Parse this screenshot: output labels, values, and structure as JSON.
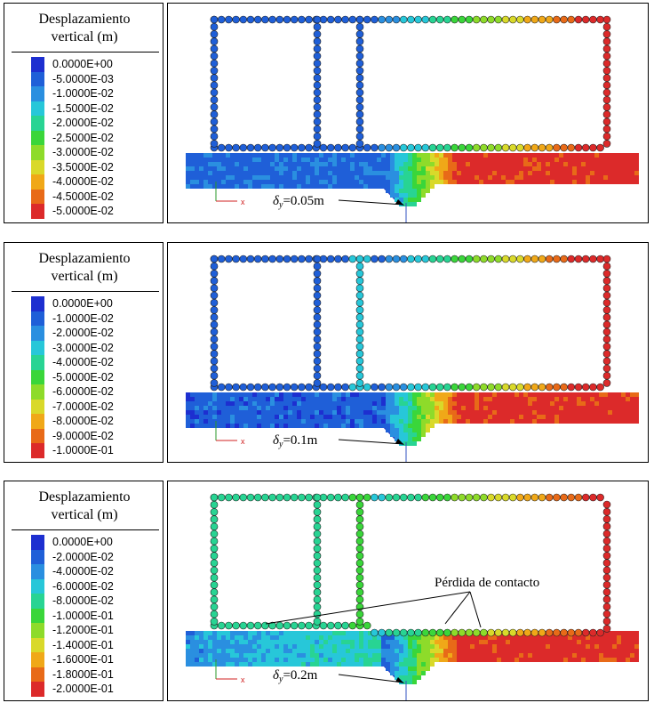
{
  "panels": [
    {
      "legend_title_line1": "Desplazamiento",
      "legend_title_line2": "vertical (m)",
      "legend_labels": [
        "0.0000E+00",
        "-5.0000E-03",
        "-1.0000E-02",
        "-1.5000E-02",
        "-2.0000E-02",
        "-2.5000E-02",
        "-3.0000E-02",
        "-3.5000E-02",
        "-4.0000E-02",
        "-4.5000E-02",
        "-5.0000E-02"
      ],
      "annotation_delta": "δ",
      "annotation_sub": "y",
      "annotation_value": "=0.05m",
      "axis_x_label": "x"
    },
    {
      "legend_title_line1": "Desplazamiento",
      "legend_title_line2": "vertical (m)",
      "legend_labels": [
        "0.0000E+00",
        "-1.0000E-02",
        "-2.0000E-02",
        "-3.0000E-02",
        "-4.0000E-02",
        "-5.0000E-02",
        "-6.0000E-02",
        "-7.0000E-02",
        "-8.0000E-02",
        "-9.0000E-02",
        "-1.0000E-01"
      ],
      "annotation_delta": "δ",
      "annotation_sub": "y",
      "annotation_value": "=0.1m",
      "axis_x_label": "x"
    },
    {
      "legend_title_line1": "Desplazamiento",
      "legend_title_line2": "vertical (m)",
      "legend_labels": [
        "0.0000E+00",
        "-2.0000E-02",
        "-4.0000E-02",
        "-6.0000E-02",
        "-8.0000E-02",
        "-1.0000E-01",
        "-1.2000E-01",
        "-1.4000E-01",
        "-1.6000E-01",
        "-1.8000E-01",
        "-2.0000E-01"
      ],
      "annotation_delta": "δ",
      "annotation_sub": "y",
      "annotation_value": "=0.2m",
      "axis_x_label": "x",
      "contact_loss_label": "Pérdida de contacto"
    }
  ],
  "colormap": [
    "#1d2fd0",
    "#1f5fd8",
    "#2a8fe0",
    "#27c7d9",
    "#28d493",
    "#3ad63a",
    "#8edb2a",
    "#d9d92a",
    "#f0a818",
    "#e86a18",
    "#dc2a2a"
  ]
}
